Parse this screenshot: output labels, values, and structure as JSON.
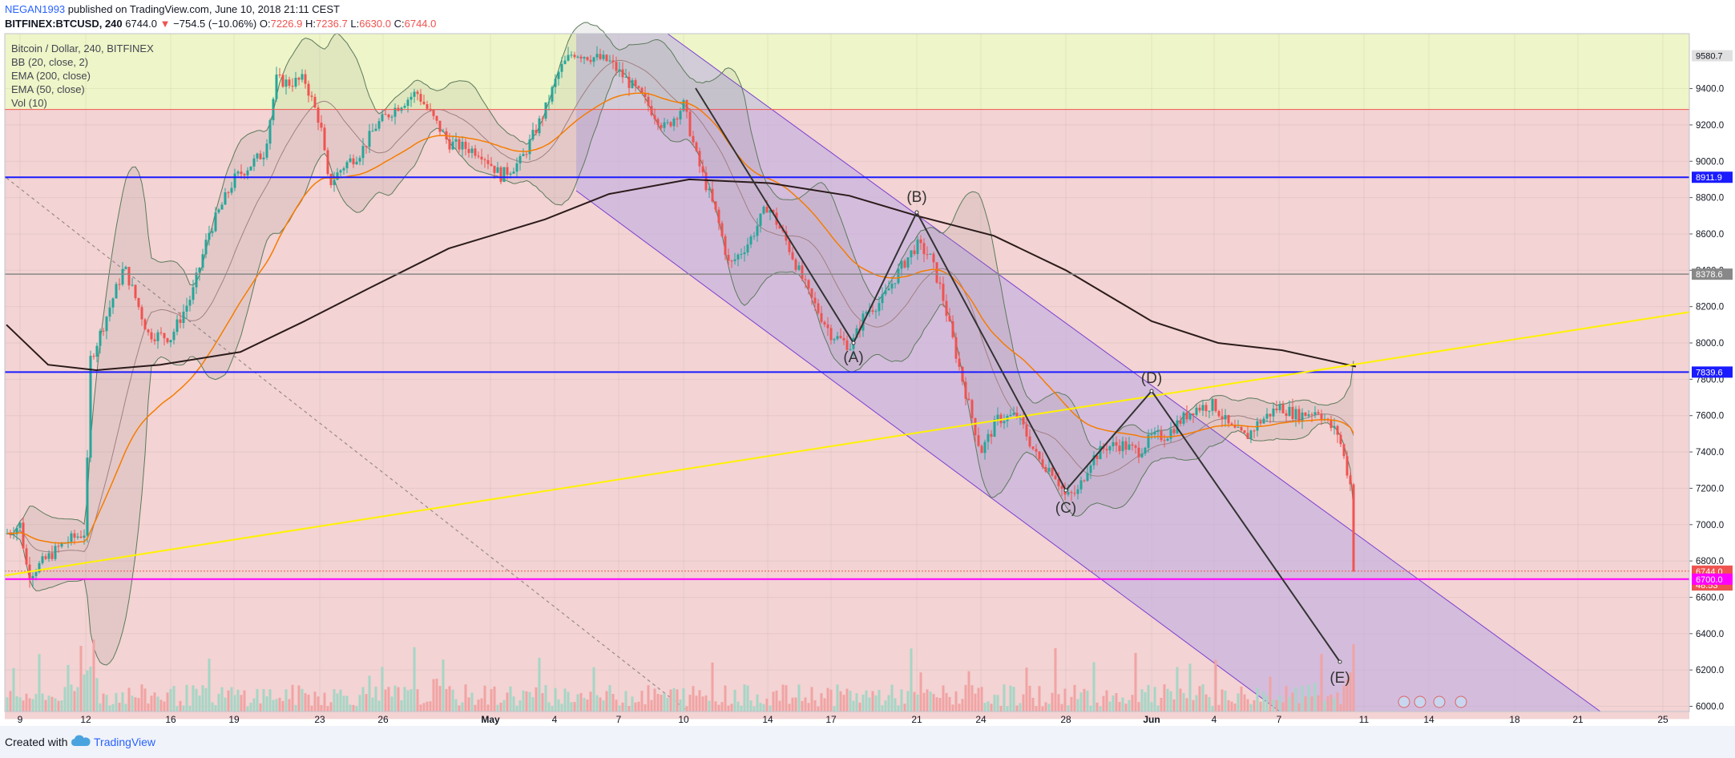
{
  "header": {
    "author": "NEGAN1993",
    "published": "published on TradingView.com, June 10, 2018 21:11 CEST",
    "symbol": "BITFINEX:BTCUSD, 240",
    "last": "6744.0",
    "change": "−754.5 (−10.06%)",
    "o_label": "O:",
    "o": "7226.9",
    "h_label": "H:",
    "h": "7236.7",
    "l_label": "L:",
    "l": "6630.0",
    "c_label": "C:",
    "c": "6744.0"
  },
  "legend": {
    "title": "Bitcoin / Dollar, 240, BITFINEX",
    "items": [
      "BB (20, close, 2)",
      "EMA (200, close)",
      "EMA (50, close)",
      "Vol (10)"
    ]
  },
  "footer": {
    "created_with": "Created with",
    "brand": "TradingView"
  },
  "colors": {
    "up": "#26a69a",
    "down": "#ef5350",
    "zone_green": "#eef5c8",
    "zone_red": "#f3d3d3",
    "channel": "#b9a9e3",
    "blue_level": "#1b1bff",
    "magenta_level": "#ff00ff",
    "yellow_trend": "#fff200",
    "ema200": "#2b1b1b",
    "ema50": "#f57c00"
  },
  "chart_data": {
    "type": "candlestick",
    "price_axis": {
      "ticks": [
        6000,
        6200,
        6400,
        6600,
        6800,
        7000,
        7200,
        7400,
        7600,
        7800,
        8000,
        8200,
        8400,
        8600,
        8800,
        9000,
        9200,
        9400
      ],
      "tick_labels": [
        "6000.0",
        "6200.0",
        "6400.0",
        "6600.0",
        "6800.0",
        "7000.0",
        "7200.0",
        "7400.0",
        "7600.0",
        "7800.0",
        "8000.0",
        "8200.0",
        "8400.0",
        "8600.0",
        "8800.0",
        "9000.0",
        "9200.0",
        "9400.0"
      ],
      "range": [
        5900,
        9600
      ]
    },
    "time_axis": {
      "labels": [
        "9",
        "12",
        "16",
        "19",
        "23",
        "26",
        "May",
        "4",
        "7",
        "10",
        "14",
        "17",
        "21",
        "24",
        "28",
        "Jun",
        "4",
        "7",
        "11",
        "14",
        "18",
        "21",
        "25"
      ]
    },
    "price_tags": [
      {
        "label": "9580.7",
        "value": 9580.7,
        "bg": "#e0e0e0",
        "fg": "#131722"
      },
      {
        "label": "8911.9",
        "value": 8911.9,
        "bg": "#1b1bff",
        "fg": "#ffffff"
      },
      {
        "label": "8378.6",
        "value": 8378.6,
        "bg": "#888888",
        "fg": "#ffffff"
      },
      {
        "label": "7839.6",
        "value": 7839.6,
        "bg": "#1b1bff",
        "fg": "#ffffff"
      },
      {
        "label": "6744.0",
        "value": 6744.0,
        "bg": "#ef5350",
        "fg": "#ffffff"
      },
      {
        "label": "48:53",
        "value": 6668,
        "bg": "#ef5350",
        "fg": "#ffffff"
      },
      {
        "label": "6700.0",
        "value": 6700.0,
        "bg": "#ff00ff",
        "fg": "#ffffff"
      }
    ],
    "levels": [
      {
        "name": "resistance-9285",
        "value": 9285,
        "color": "#ef5350",
        "width": 1
      },
      {
        "name": "level-8911",
        "value": 8911.9,
        "color": "#1b1bff",
        "width": 2
      },
      {
        "name": "level-8378",
        "value": 8378.6,
        "color": "#888888",
        "width": 1.5
      },
      {
        "name": "level-7839",
        "value": 7839.6,
        "color": "#1b1bff",
        "width": 2
      },
      {
        "name": "level-6700",
        "value": 6700.0,
        "color": "#ff00ff",
        "width": 2
      }
    ],
    "waves": [
      {
        "label": "(A)",
        "value": 7950
      },
      {
        "label": "(B)",
        "value": 8665
      },
      {
        "label": "(C)",
        "value": 7120
      },
      {
        "label": "(D)",
        "value": 7680
      },
      {
        "label": "(E)",
        "value": 6180
      }
    ],
    "last_price": 6744.0
  }
}
